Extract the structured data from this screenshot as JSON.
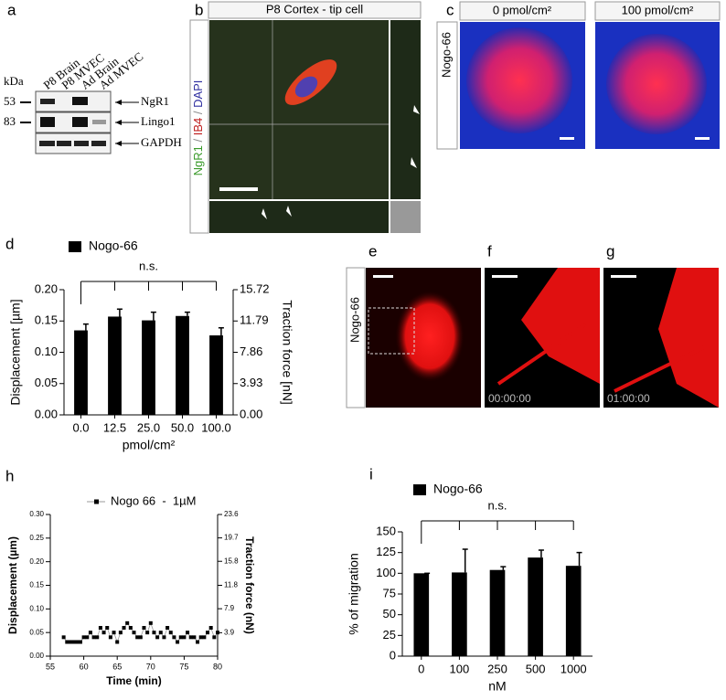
{
  "panels": [
    "a",
    "b",
    "c",
    "d",
    "e",
    "f",
    "g",
    "h",
    "i"
  ],
  "blot": {
    "unit": "kDa",
    "markers": [
      "53",
      "83"
    ],
    "lanes": [
      "P8 Brain",
      "P8 MVEC",
      "Ad Brain",
      "Ad MVEC"
    ],
    "bands": [
      "NgR1",
      "Lingo1",
      "GAPDH"
    ]
  },
  "confocal": {
    "title": "P8 Cortex - tip cell",
    "stains": [
      "NgR1",
      "IB4",
      "DAPI"
    ],
    "separator": "/"
  },
  "spreading": {
    "conditions": [
      "0 pmol/cm²",
      "100 pmol/cm²"
    ],
    "treatment": "Nogo-66"
  },
  "timelapse": {
    "treatment": "Nogo-66",
    "times": [
      "00:00:00",
      "01:00:00"
    ]
  },
  "chart_data": [
    {
      "type": "bar",
      "categories": [
        "0.0",
        "12.5",
        "25.0",
        "50.0",
        "100.0"
      ],
      "series": [
        {
          "name": "Nogo-66",
          "color": "#000000",
          "values": [
            0.135,
            0.157,
            0.151,
            0.158,
            0.127
          ],
          "errors": [
            0.01,
            0.012,
            0.013,
            0.006,
            0.012
          ]
        }
      ],
      "xlabel": "pmol/cm²",
      "ylabel": "Displacement [µm]",
      "y2label": "Traction force [nN]",
      "annotation": "n.s.",
      "ylim": [
        0,
        0.2
      ],
      "yticks": [
        {
          "value": 0,
          "label": "0.00"
        },
        {
          "value": 0.05,
          "label": "0.05"
        },
        {
          "value": 0.1,
          "label": "0.10"
        },
        {
          "value": 0.15,
          "label": "0.15"
        },
        {
          "value": 0.2,
          "label": "0.20"
        }
      ],
      "y2lim": [
        0,
        15.72
      ],
      "y2ticks": [
        {
          "value": 0,
          "label": "0.00"
        },
        3.93,
        7.86,
        11.79,
        15.72
      ]
    },
    {
      "type": "line",
      "x": [
        57,
        57.5,
        58,
        58.5,
        59,
        59.5,
        60,
        60.5,
        61,
        61.5,
        62,
        62.5,
        63,
        63.5,
        64,
        64.5,
        65,
        65.5,
        66,
        66.5,
        67,
        67.5,
        68,
        68.5,
        69,
        69.5,
        70,
        70.5,
        71,
        71.5,
        72,
        72.5,
        73,
        73.5,
        74,
        74.5,
        75,
        75.5,
        76,
        76.5,
        77,
        77.5,
        78,
        78.5,
        79,
        79.5,
        80
      ],
      "series": [
        {
          "name": "Nogo 66  -  1µM",
          "color": "#000000",
          "values": [
            0.04,
            0.03,
            0.03,
            0.03,
            0.03,
            0.03,
            0.04,
            0.04,
            0.05,
            0.04,
            0.04,
            0.06,
            0.05,
            0.06,
            0.04,
            0.05,
            0.03,
            0.05,
            0.06,
            0.07,
            0.06,
            0.05,
            0.04,
            0.04,
            0.06,
            0.05,
            0.07,
            0.05,
            0.04,
            0.05,
            0.04,
            0.06,
            0.05,
            0.04,
            0.03,
            0.04,
            0.04,
            0.05,
            0.04,
            0.04,
            0.03,
            0.04,
            0.04,
            0.05,
            0.06,
            0.04,
            0.05
          ]
        }
      ],
      "xlabel": "Time (min)",
      "ylabel": "Displacement (µm)",
      "y2label": "Traction force (nN)",
      "xlim": [
        55,
        80
      ],
      "xticks": [
        55,
        60,
        65,
        70,
        75,
        80
      ],
      "ylim": [
        0,
        0.3
      ],
      "yticks": [
        {
          "value": 0,
          "label": "0.00"
        },
        0.05,
        {
          "value": 0.1,
          "label": "0.10"
        },
        0.15,
        {
          "value": 0.2,
          "label": "0.20"
        },
        0.25,
        {
          "value": 0.3,
          "label": "0.30"
        }
      ],
      "y2lim": [
        0,
        23.6
      ],
      "y2ticks": [
        3.9,
        7.9,
        11.8,
        15.8,
        19.7,
        23.6
      ]
    },
    {
      "type": "bar",
      "categories": [
        "0",
        "100",
        "250",
        "500",
        "1000"
      ],
      "series": [
        {
          "name": "Nogo-66",
          "color": "#000000",
          "values": [
            100,
            101,
            104,
            119,
            109
          ],
          "errors": [
            0,
            28,
            4,
            9,
            16
          ]
        }
      ],
      "xlabel": "nM",
      "ylabel": "% of migration",
      "annotation": "n.s.",
      "ylim": [
        0,
        150
      ],
      "yticks": [
        0,
        25,
        50,
        75,
        100,
        125,
        150
      ]
    }
  ]
}
